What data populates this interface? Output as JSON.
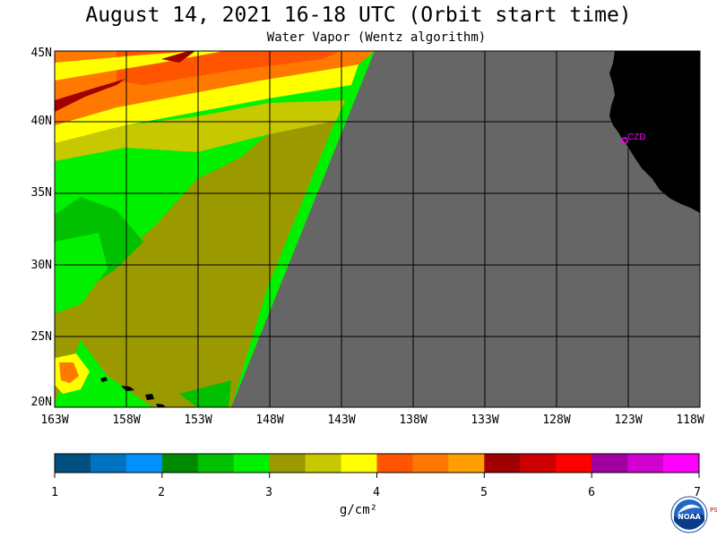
{
  "title": "August 14, 2021  16-18 UTC  (Orbit start time)",
  "subtitle": "Water Vapor (Wentz algorithm)",
  "map": {
    "lat_labels": [
      "45N",
      "40N",
      "35N",
      "30N",
      "25N",
      "20N"
    ],
    "lon_labels": [
      "163W",
      "158W",
      "153W",
      "148W",
      "143W",
      "138W",
      "133W",
      "128W",
      "123W",
      "118W"
    ],
    "station_label": "CZD",
    "station_color": "#ff00ff",
    "no_data_color": "#666666",
    "land_color": "#000000"
  },
  "colorbar": {
    "colors": [
      "#00507f",
      "#0073c0",
      "#0090ff",
      "#008a00",
      "#00c000",
      "#00f000",
      "#9a9a00",
      "#c8c800",
      "#ffff00",
      "#ff5500",
      "#ff7800",
      "#ffa000",
      "#a00000",
      "#cc0000",
      "#ff0000",
      "#a000a0",
      "#d000d0",
      "#ff00ff"
    ],
    "tick_labels": [
      "1",
      "2",
      "3",
      "4",
      "5",
      "6",
      "7"
    ],
    "unit": "g/cm²"
  },
  "logo": {
    "text": "NOAA",
    "side_text": "PSL"
  }
}
